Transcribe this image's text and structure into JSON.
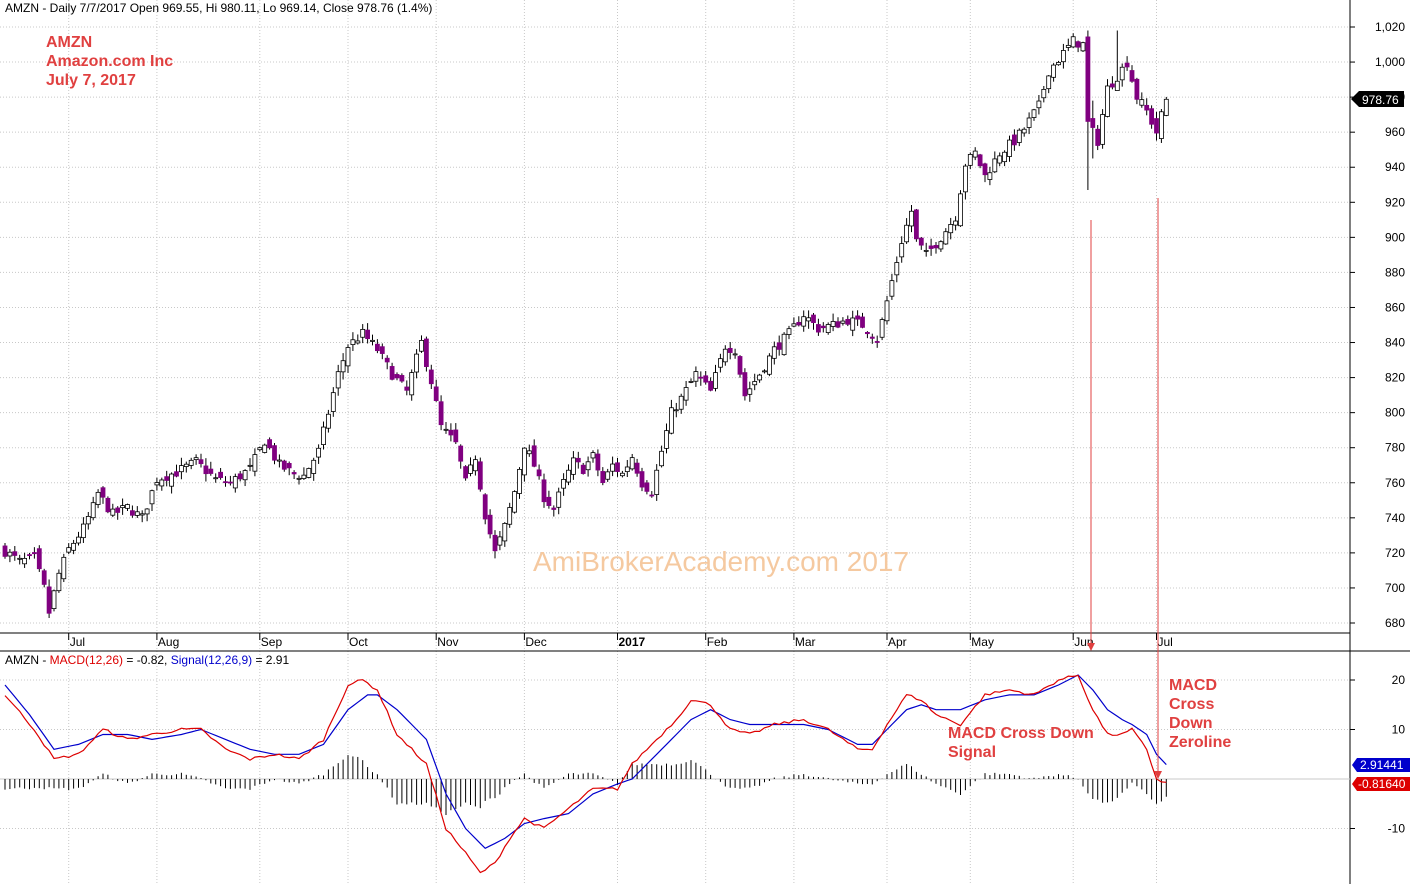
{
  "header": {
    "ticker": "AMZN",
    "price_line": "AMZN - Daily 7/7/2017 Open 969.55, Hi 980.11, Lo 969.14, Close 978.76 (1.4%)",
    "macd_prefix": "AMZN - ",
    "macd_label": "MACD(12,26)",
    "macd_value": " = -0.82, ",
    "signal_label": "Signal(12,26,9)",
    "signal_value": " = 2.91"
  },
  "annotations": {
    "symbol": "AMZN",
    "company": "Amazon.com Inc",
    "date": "July 7, 2017",
    "watermark": "AmiBrokerAcademy.com  2017",
    "cross_down_signal": [
      "MACD Cross Down",
      "Signal"
    ],
    "cross_down_zeroline": [
      "MACD",
      "Cross",
      "Down",
      "Zeroline"
    ]
  },
  "colors": {
    "up_candle": "#ffffff",
    "down_candle": "#800080",
    "macd": "#dd0000",
    "signal": "#0000cc",
    "annotation": "#e04040",
    "watermark": "#f5c9a0",
    "grid": "#c8c8c8"
  },
  "chart_data": {
    "type": "candlestick",
    "symbol": "AMZN",
    "interval": "Daily",
    "last_bar": {
      "date": "7/7/2017",
      "open": 969.55,
      "high": 980.11,
      "low": 969.14,
      "close": 978.76,
      "change": "1.4%"
    },
    "price_axis": {
      "ticks": [
        "1,020",
        "1,000",
        "980",
        "960",
        "940",
        "920",
        "900",
        "880",
        "860",
        "840",
        "820",
        "800",
        "780",
        "760",
        "740",
        "720",
        "700",
        "680"
      ],
      "ylim": [
        670,
        1030
      ],
      "last_label": "978.76"
    },
    "month_labels": [
      "Jul",
      "Aug",
      "Sep",
      "Oct",
      "Nov",
      "Dec",
      "2017",
      "Feb",
      "Mar",
      "Apr",
      "May",
      "Jun",
      "Jul"
    ],
    "close_path": [
      [
        0,
        721
      ],
      [
        3,
        715
      ],
      [
        6,
        717
      ],
      [
        8,
        700
      ],
      [
        9,
        686
      ],
      [
        11,
        708
      ],
      [
        13,
        722
      ],
      [
        16,
        734
      ],
      [
        18,
        746
      ],
      [
        19,
        754
      ],
      [
        22,
        742
      ],
      [
        25,
        746
      ],
      [
        28,
        740
      ],
      [
        31,
        762
      ],
      [
        35,
        766
      ],
      [
        39,
        772
      ],
      [
        43,
        762
      ],
      [
        46,
        760
      ],
      [
        50,
        768
      ],
      [
        53,
        784
      ],
      [
        56,
        770
      ],
      [
        59,
        765
      ],
      [
        61,
        764
      ],
      [
        64,
        778
      ],
      [
        66,
        800
      ],
      [
        68,
        822
      ],
      [
        70,
        838
      ],
      [
        73,
        845
      ],
      [
        76,
        836
      ],
      [
        79,
        822
      ],
      [
        82,
        812
      ],
      [
        85,
        840
      ],
      [
        87,
        818
      ],
      [
        89,
        792
      ],
      [
        92,
        782
      ],
      [
        94,
        760
      ],
      [
        96,
        775
      ],
      [
        98,
        742
      ],
      [
        100,
        720
      ],
      [
        102,
        735
      ],
      [
        104,
        755
      ],
      [
        106,
        782
      ],
      [
        108,
        770
      ],
      [
        110,
        752
      ],
      [
        112,
        745
      ],
      [
        114,
        760
      ],
      [
        116,
        772
      ],
      [
        118,
        768
      ],
      [
        120,
        775
      ],
      [
        122,
        760
      ],
      [
        124,
        770
      ],
      [
        126,
        765
      ],
      [
        128,
        775
      ],
      [
        130,
        760
      ],
      [
        132,
        755
      ],
      [
        134,
        778
      ],
      [
        136,
        800
      ],
      [
        138,
        808
      ],
      [
        141,
        822
      ],
      [
        144,
        812
      ],
      [
        147,
        838
      ],
      [
        149,
        836
      ],
      [
        151,
        810
      ],
      [
        154,
        822
      ],
      [
        157,
        836
      ],
      [
        160,
        845
      ],
      [
        163,
        856
      ],
      [
        166,
        848
      ],
      [
        169,
        850
      ],
      [
        172,
        853
      ],
      [
        175,
        850
      ],
      [
        178,
        842
      ],
      [
        179,
        852
      ],
      [
        181,
        875
      ],
      [
        183,
        898
      ],
      [
        185,
        915
      ],
      [
        186,
        898
      ],
      [
        188,
        890
      ],
      [
        191,
        900
      ],
      [
        194,
        912
      ],
      [
        196,
        942
      ],
      [
        198,
        948
      ],
      [
        200,
        935
      ],
      [
        203,
        948
      ],
      [
        206,
        955
      ],
      [
        208,
        962
      ],
      [
        211,
        975
      ],
      [
        213,
        995
      ],
      [
        216,
        1005
      ],
      [
        218,
        1012
      ],
      [
        220,
        1010
      ],
      [
        221,
        965
      ],
      [
        223,
        955
      ],
      [
        225,
        985
      ],
      [
        227,
        992
      ],
      [
        229,
        1000
      ],
      [
        231,
        980
      ],
      [
        233,
        972
      ],
      [
        235,
        960
      ],
      [
        237,
        978.76
      ]
    ],
    "spikes": [
      {
        "bar": 221,
        "high": 1018,
        "low": 927
      },
      {
        "bar": 222,
        "high": 978,
        "low": 945
      },
      {
        "bar": 227,
        "high": 1018,
        "low": 985
      }
    ],
    "macd_axis": {
      "ticks": [
        "20",
        "10",
        "-10"
      ],
      "ylim": [
        -20,
        25
      ],
      "macd_last": "-0.81640",
      "signal_last": "2.91441"
    },
    "macd_path": [
      [
        0,
        17
      ],
      [
        6,
        10
      ],
      [
        10,
        4
      ],
      [
        15,
        5
      ],
      [
        20,
        10
      ],
      [
        25,
        8
      ],
      [
        30,
        9
      ],
      [
        36,
        10
      ],
      [
        40,
        10
      ],
      [
        45,
        6
      ],
      [
        50,
        4
      ],
      [
        55,
        5
      ],
      [
        60,
        4
      ],
      [
        65,
        8
      ],
      [
        70,
        19
      ],
      [
        73,
        20
      ],
      [
        76,
        18
      ],
      [
        80,
        9
      ],
      [
        86,
        3
      ],
      [
        90,
        -10
      ],
      [
        94,
        -15
      ],
      [
        97,
        -19
      ],
      [
        100,
        -17
      ],
      [
        103,
        -12
      ],
      [
        106,
        -8
      ],
      [
        110,
        -10
      ],
      [
        115,
        -6
      ],
      [
        120,
        -2
      ],
      [
        125,
        -2
      ],
      [
        128,
        3
      ],
      [
        133,
        8
      ],
      [
        137,
        12
      ],
      [
        140,
        16
      ],
      [
        144,
        15
      ],
      [
        148,
        10
      ],
      [
        152,
        9
      ],
      [
        157,
        11
      ],
      [
        163,
        12
      ],
      [
        168,
        10
      ],
      [
        174,
        6
      ],
      [
        177,
        6
      ],
      [
        180,
        11
      ],
      [
        184,
        17
      ],
      [
        187,
        16
      ],
      [
        190,
        13
      ],
      [
        195,
        11
      ],
      [
        200,
        17
      ],
      [
        205,
        18
      ],
      [
        210,
        17
      ],
      [
        215,
        20
      ],
      [
        219,
        21
      ],
      [
        222,
        14
      ],
      [
        225,
        9
      ],
      [
        228,
        9
      ],
      [
        230,
        10
      ],
      [
        233,
        6
      ],
      [
        235,
        0
      ],
      [
        237,
        -0.82
      ]
    ],
    "signal_path": [
      [
        0,
        19
      ],
      [
        5,
        13
      ],
      [
        10,
        6
      ],
      [
        15,
        7
      ],
      [
        20,
        9
      ],
      [
        25,
        9
      ],
      [
        30,
        8
      ],
      [
        36,
        9
      ],
      [
        40,
        10
      ],
      [
        45,
        8
      ],
      [
        50,
        6
      ],
      [
        55,
        5
      ],
      [
        60,
        5
      ],
      [
        65,
        7
      ],
      [
        70,
        14
      ],
      [
        74,
        17
      ],
      [
        76,
        17
      ],
      [
        80,
        14
      ],
      [
        86,
        8
      ],
      [
        90,
        -3
      ],
      [
        94,
        -10
      ],
      [
        98,
        -14
      ],
      [
        102,
        -12
      ],
      [
        106,
        -9
      ],
      [
        110,
        -8
      ],
      [
        115,
        -7
      ],
      [
        120,
        -3
      ],
      [
        125,
        -1
      ],
      [
        128,
        0
      ],
      [
        133,
        5
      ],
      [
        137,
        9
      ],
      [
        140,
        12
      ],
      [
        144,
        14
      ],
      [
        148,
        12
      ],
      [
        152,
        11
      ],
      [
        157,
        11
      ],
      [
        163,
        11
      ],
      [
        168,
        10
      ],
      [
        174,
        7
      ],
      [
        177,
        7
      ],
      [
        180,
        10
      ],
      [
        184,
        14
      ],
      [
        187,
        15
      ],
      [
        190,
        14
      ],
      [
        195,
        14
      ],
      [
        200,
        16
      ],
      [
        205,
        17
      ],
      [
        210,
        17
      ],
      [
        215,
        19
      ],
      [
        219,
        21
      ],
      [
        222,
        18
      ],
      [
        225,
        14
      ],
      [
        228,
        12
      ],
      [
        230,
        11
      ],
      [
        233,
        9
      ],
      [
        235,
        5
      ],
      [
        237,
        2.91
      ]
    ]
  }
}
